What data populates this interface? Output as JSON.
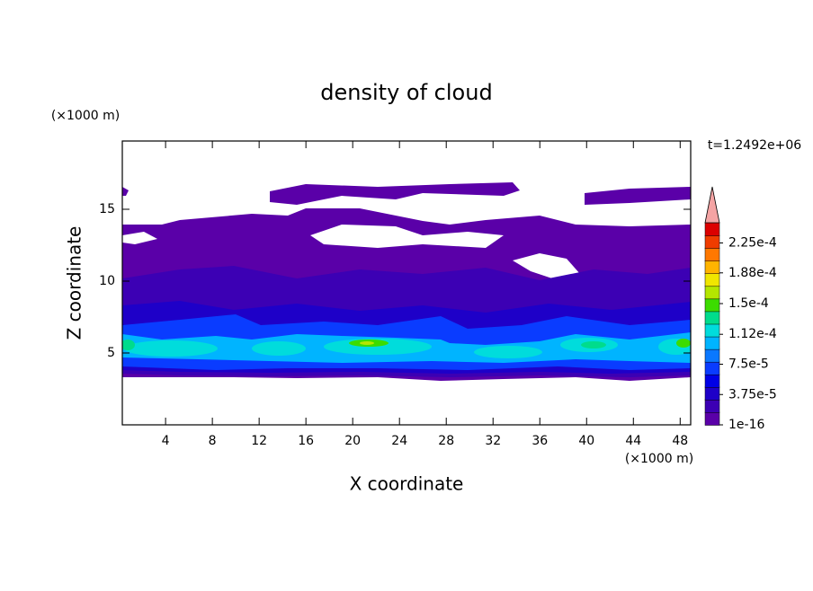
{
  "chart_data": {
    "type": "contour",
    "title": "density of cloud",
    "xlabel": "X coordinate",
    "ylabel": "Z coordinate",
    "x_unit": "(×1000 m)",
    "y_unit": "(×1000 m)",
    "time_label": "t=1.2492e+06",
    "xlim": [
      0.3,
      48.9
    ],
    "xticks": [
      4,
      8,
      12,
      16,
      20,
      24,
      28,
      32,
      36,
      40,
      44,
      48
    ],
    "ylim": [
      0,
      19.75
    ],
    "yticks": [
      5,
      10,
      15
    ],
    "colorbar": {
      "clim": [
        1e-16,
        0.00025
      ],
      "colors": [
        "#5a00a8",
        "#3c00b4",
        "#1e00c8",
        "#0000e6",
        "#0a3cff",
        "#0a78ff",
        "#00b4ff",
        "#00dcdc",
        "#00dc8c",
        "#3cdc00",
        "#b4e600",
        "#f0e600",
        "#ffb400",
        "#ff7800",
        "#f03c00",
        "#dc0000"
      ],
      "over_color": "#f4a4a4",
      "ticks": [
        {
          "value": 1e-16,
          "label": "1e-16"
        },
        {
          "value": 3.75e-05,
          "label": "3.75e-5"
        },
        {
          "value": 7.5e-05,
          "label": "7.5e-5"
        },
        {
          "value": 0.000112,
          "label": "1.12e-4"
        },
        {
          "value": 0.00015,
          "label": "1.5e-4"
        },
        {
          "value": 0.000188,
          "label": "1.88e-4"
        },
        {
          "value": 0.000225,
          "label": "2.25e-4"
        }
      ]
    }
  }
}
